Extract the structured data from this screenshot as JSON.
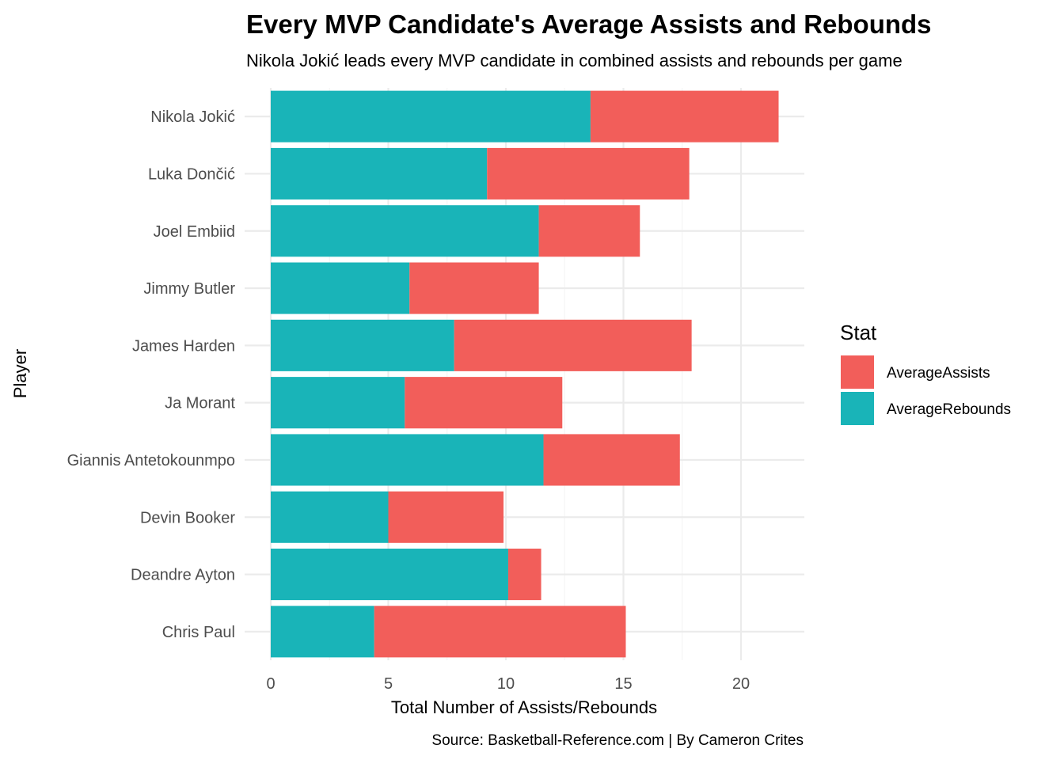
{
  "chart_data": {
    "type": "bar",
    "orientation": "horizontal",
    "stacked": true,
    "title": "Every MVP Candidate's Average Assists and Rebounds",
    "subtitle": "Nikola Jokić leads every MVP candidate in combined assists and rebounds per game",
    "caption": "Source: Basketball-Reference.com | By Cameron Crites",
    "xlabel": "Total Number of Assists/Rebounds",
    "ylabel": "Player",
    "xlim": [
      0,
      22.5
    ],
    "xticks": [
      0,
      5,
      10,
      15,
      20
    ],
    "grid": true,
    "legend": {
      "title": "Stat",
      "position": "right"
    },
    "categories": [
      "Nikola Jokić",
      "Luka Dončić",
      "Joel Embiid",
      "Jimmy Butler",
      "James Harden",
      "Ja Morant",
      "Giannis Antetokounmpo",
      "Devin Booker",
      "Deandre Ayton",
      "Chris Paul"
    ],
    "series": [
      {
        "name": "AverageRebounds",
        "color": "#19b4b8",
        "values": [
          13.6,
          9.2,
          11.4,
          5.9,
          7.8,
          5.7,
          11.6,
          5.0,
          10.1,
          4.4
        ]
      },
      {
        "name": "AverageAssists",
        "color": "#f25e5a",
        "values": [
          8.0,
          8.6,
          4.3,
          5.5,
          10.1,
          6.7,
          5.8,
          4.9,
          1.4,
          10.7
        ]
      }
    ],
    "legend_order": [
      "AverageAssists",
      "AverageRebounds"
    ]
  }
}
